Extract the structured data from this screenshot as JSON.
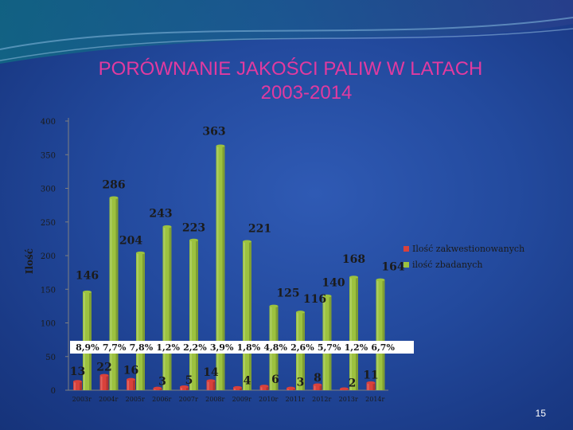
{
  "slide": {
    "title_line1": "PORÓWNANIE JAKOŚCI PALIW W LATACH",
    "title_line2": "2003-2014",
    "page_number": "15"
  },
  "colors": {
    "background": "#234a9e",
    "title": "#e23aa0",
    "series_red": "#d9413b",
    "series_green": "#9cc23f"
  },
  "chart_data": {
    "type": "bar",
    "categories": [
      "2003r",
      "2004r",
      "2005r",
      "2006r",
      "2007r",
      "2008r",
      "2009r",
      "2010r",
      "2011r",
      "2012r",
      "2013r",
      "2014r"
    ],
    "series": [
      {
        "name": "Ilość zakwestionowanych",
        "values": [
          13,
          22,
          16,
          3,
          5,
          14,
          4,
          6,
          3,
          8,
          2,
          11
        ]
      },
      {
        "name": "ilość zbadanych",
        "values": [
          146,
          286,
          204,
          243,
          223,
          363,
          221,
          125,
          116,
          140,
          168,
          164
        ]
      }
    ],
    "percentages": [
      "8,9%",
      "7,7%",
      "7,8%",
      "1,2%",
      "2,2%",
      "3,9%",
      "1,8%",
      "4,8%",
      "2,6%",
      "5,7%",
      "1,2%",
      "6,7%"
    ],
    "ylabel": "Ilość",
    "ylim": [
      0,
      400
    ],
    "yticks": [
      0,
      50,
      100,
      150,
      200,
      250,
      300,
      350,
      400
    ],
    "grid": false,
    "legend": "right"
  }
}
